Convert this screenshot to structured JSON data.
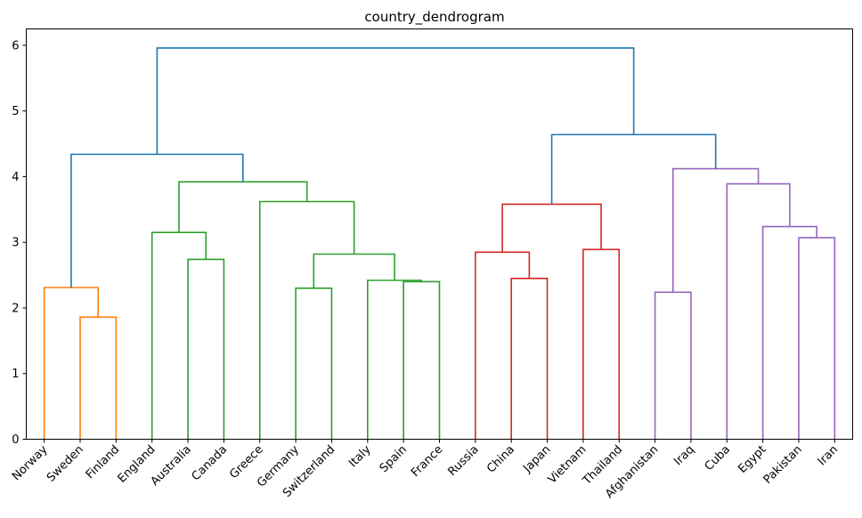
{
  "chart_data": {
    "type": "dendrogram",
    "title": "country_dendrogram",
    "xlabel": "",
    "ylabel": "",
    "ylim": [
      0,
      6.25
    ],
    "yticks": [
      0,
      1,
      2,
      3,
      4,
      5,
      6
    ],
    "grid": false,
    "leaves": [
      "Norway",
      "Sweden",
      "Finland",
      "England",
      "Australia",
      "Canada",
      "Greece",
      "Germany",
      "Switzerland",
      "Italy",
      "Spain",
      "France",
      "Russia",
      "China",
      "Japan",
      "Vietnam",
      "Thailand",
      "Afghanistan",
      "Iraq",
      "Cuba",
      "Egypt",
      "Pakistan",
      "Iran"
    ],
    "colors": {
      "orange": "#ff7f0e",
      "green": "#2ca02c",
      "red": "#d62728",
      "purple": "#9467bd",
      "blue": "#1f77b4"
    },
    "merges": [
      {
        "id": "n1",
        "a": "Sweden",
        "b": "Finland",
        "height": 1.86,
        "color": "orange"
      },
      {
        "id": "n2",
        "a": "Norway",
        "b": "n1",
        "height": 2.31,
        "color": "orange"
      },
      {
        "id": "n3",
        "a": "Australia",
        "b": "Canada",
        "height": 2.74,
        "color": "green"
      },
      {
        "id": "n4",
        "a": "England",
        "b": "n3",
        "height": 3.15,
        "color": "green"
      },
      {
        "id": "n5",
        "a": "Germany",
        "b": "Switzerland",
        "height": 2.3,
        "color": "green"
      },
      {
        "id": "n6",
        "a": "Spain",
        "b": "France",
        "height": 2.4,
        "color": "green"
      },
      {
        "id": "n7",
        "a": "Italy",
        "b": "n6",
        "height": 2.42,
        "color": "green"
      },
      {
        "id": "n8",
        "a": "n5",
        "b": "n7",
        "height": 2.82,
        "color": "green"
      },
      {
        "id": "n9",
        "a": "Greece",
        "b": "n8",
        "height": 3.62,
        "color": "green"
      },
      {
        "id": "n10",
        "a": "n4",
        "b": "n9",
        "height": 3.92,
        "color": "green"
      },
      {
        "id": "n11",
        "a": "n2",
        "b": "n10",
        "height": 4.34,
        "color": "blue"
      },
      {
        "id": "n12",
        "a": "China",
        "b": "Japan",
        "height": 2.45,
        "color": "red"
      },
      {
        "id": "n13",
        "a": "Russia",
        "b": "n12",
        "height": 2.85,
        "color": "red"
      },
      {
        "id": "n14",
        "a": "Vietnam",
        "b": "Thailand",
        "height": 2.89,
        "color": "red"
      },
      {
        "id": "n15",
        "a": "n13",
        "b": "n14",
        "height": 3.58,
        "color": "red"
      },
      {
        "id": "n16",
        "a": "Afghanistan",
        "b": "Iraq",
        "height": 2.24,
        "color": "purple"
      },
      {
        "id": "n17",
        "a": "Pakistan",
        "b": "Iran",
        "height": 3.07,
        "color": "purple"
      },
      {
        "id": "n18",
        "a": "Egypt",
        "b": "n17",
        "height": 3.24,
        "color": "purple"
      },
      {
        "id": "n19",
        "a": "Cuba",
        "b": "n18",
        "height": 3.89,
        "color": "purple"
      },
      {
        "id": "n20",
        "a": "n16",
        "b": "n19",
        "height": 4.12,
        "color": "purple"
      },
      {
        "id": "n21",
        "a": "n15",
        "b": "n20",
        "height": 4.64,
        "color": "blue"
      },
      {
        "id": "n22",
        "a": "n11",
        "b": "n21",
        "height": 5.96,
        "color": "blue"
      }
    ]
  }
}
